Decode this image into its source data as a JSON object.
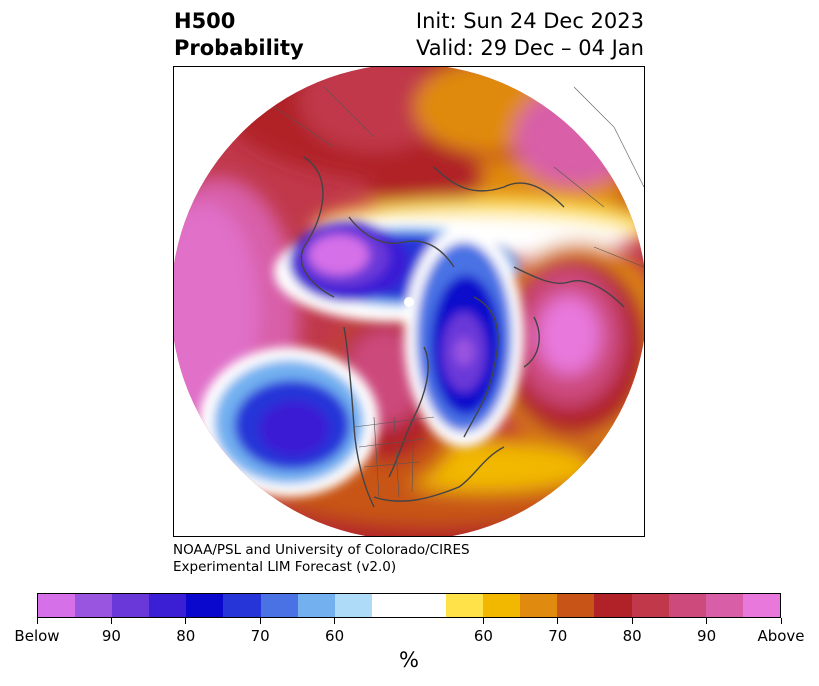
{
  "title": {
    "left_line1": "H500",
    "left_line2": "Probability",
    "right_line1": "Init: Sun 24 Dec 2023",
    "right_line2": "Valid: 29 Dec – 04 Jan"
  },
  "credit": {
    "line1": "NOAA/PSL and University of Colorado/CIRES",
    "line2": "Experimental LIM Forecast (v2.0)"
  },
  "colorbar": {
    "colors": [
      "#d670e8",
      "#9a55e0",
      "#6a37d8",
      "#3a1fd4",
      "#0a08cc",
      "#2535d8",
      "#4a72e4",
      "#72b0f0",
      "#aedbf8",
      "#ffffff",
      "#ffffff",
      "#ffe24a",
      "#f2b800",
      "#e08a10",
      "#c85418",
      "#b02228",
      "#c0384a",
      "#cc4a7c",
      "#d85ea8",
      "#e878dc"
    ],
    "tick_labels": [
      "Below",
      "90",
      "80",
      "70",
      "60",
      "60",
      "70",
      "80",
      "90",
      "Above"
    ],
    "unit": "%"
  },
  "map": {
    "projection": "north-polar-stereographic",
    "region": "Northern Hemisphere",
    "features": [
      "coastlines",
      "country borders",
      "US state borders"
    ],
    "anomaly_centers": [
      {
        "location": "Siberia / Arctic",
        "sign": "below",
        "peak": "Below"
      },
      {
        "location": "Baffin Bay / Greenland",
        "sign": "below",
        "peak": "90"
      },
      {
        "location": "Eastern North Pacific",
        "sign": "below",
        "peak": "80"
      },
      {
        "location": "North Pacific / Aleutians",
        "sign": "above",
        "peak": "Above"
      },
      {
        "location": "Western Canada",
        "sign": "above",
        "peak": "Above"
      },
      {
        "location": "Eastern Europe / Russia",
        "sign": "above",
        "peak": "Above"
      },
      {
        "location": "North Atlantic / Azores",
        "sign": "above",
        "peak": "Above"
      },
      {
        "location": "Central / Eastern Asia",
        "sign": "above",
        "peak": "90"
      }
    ]
  }
}
